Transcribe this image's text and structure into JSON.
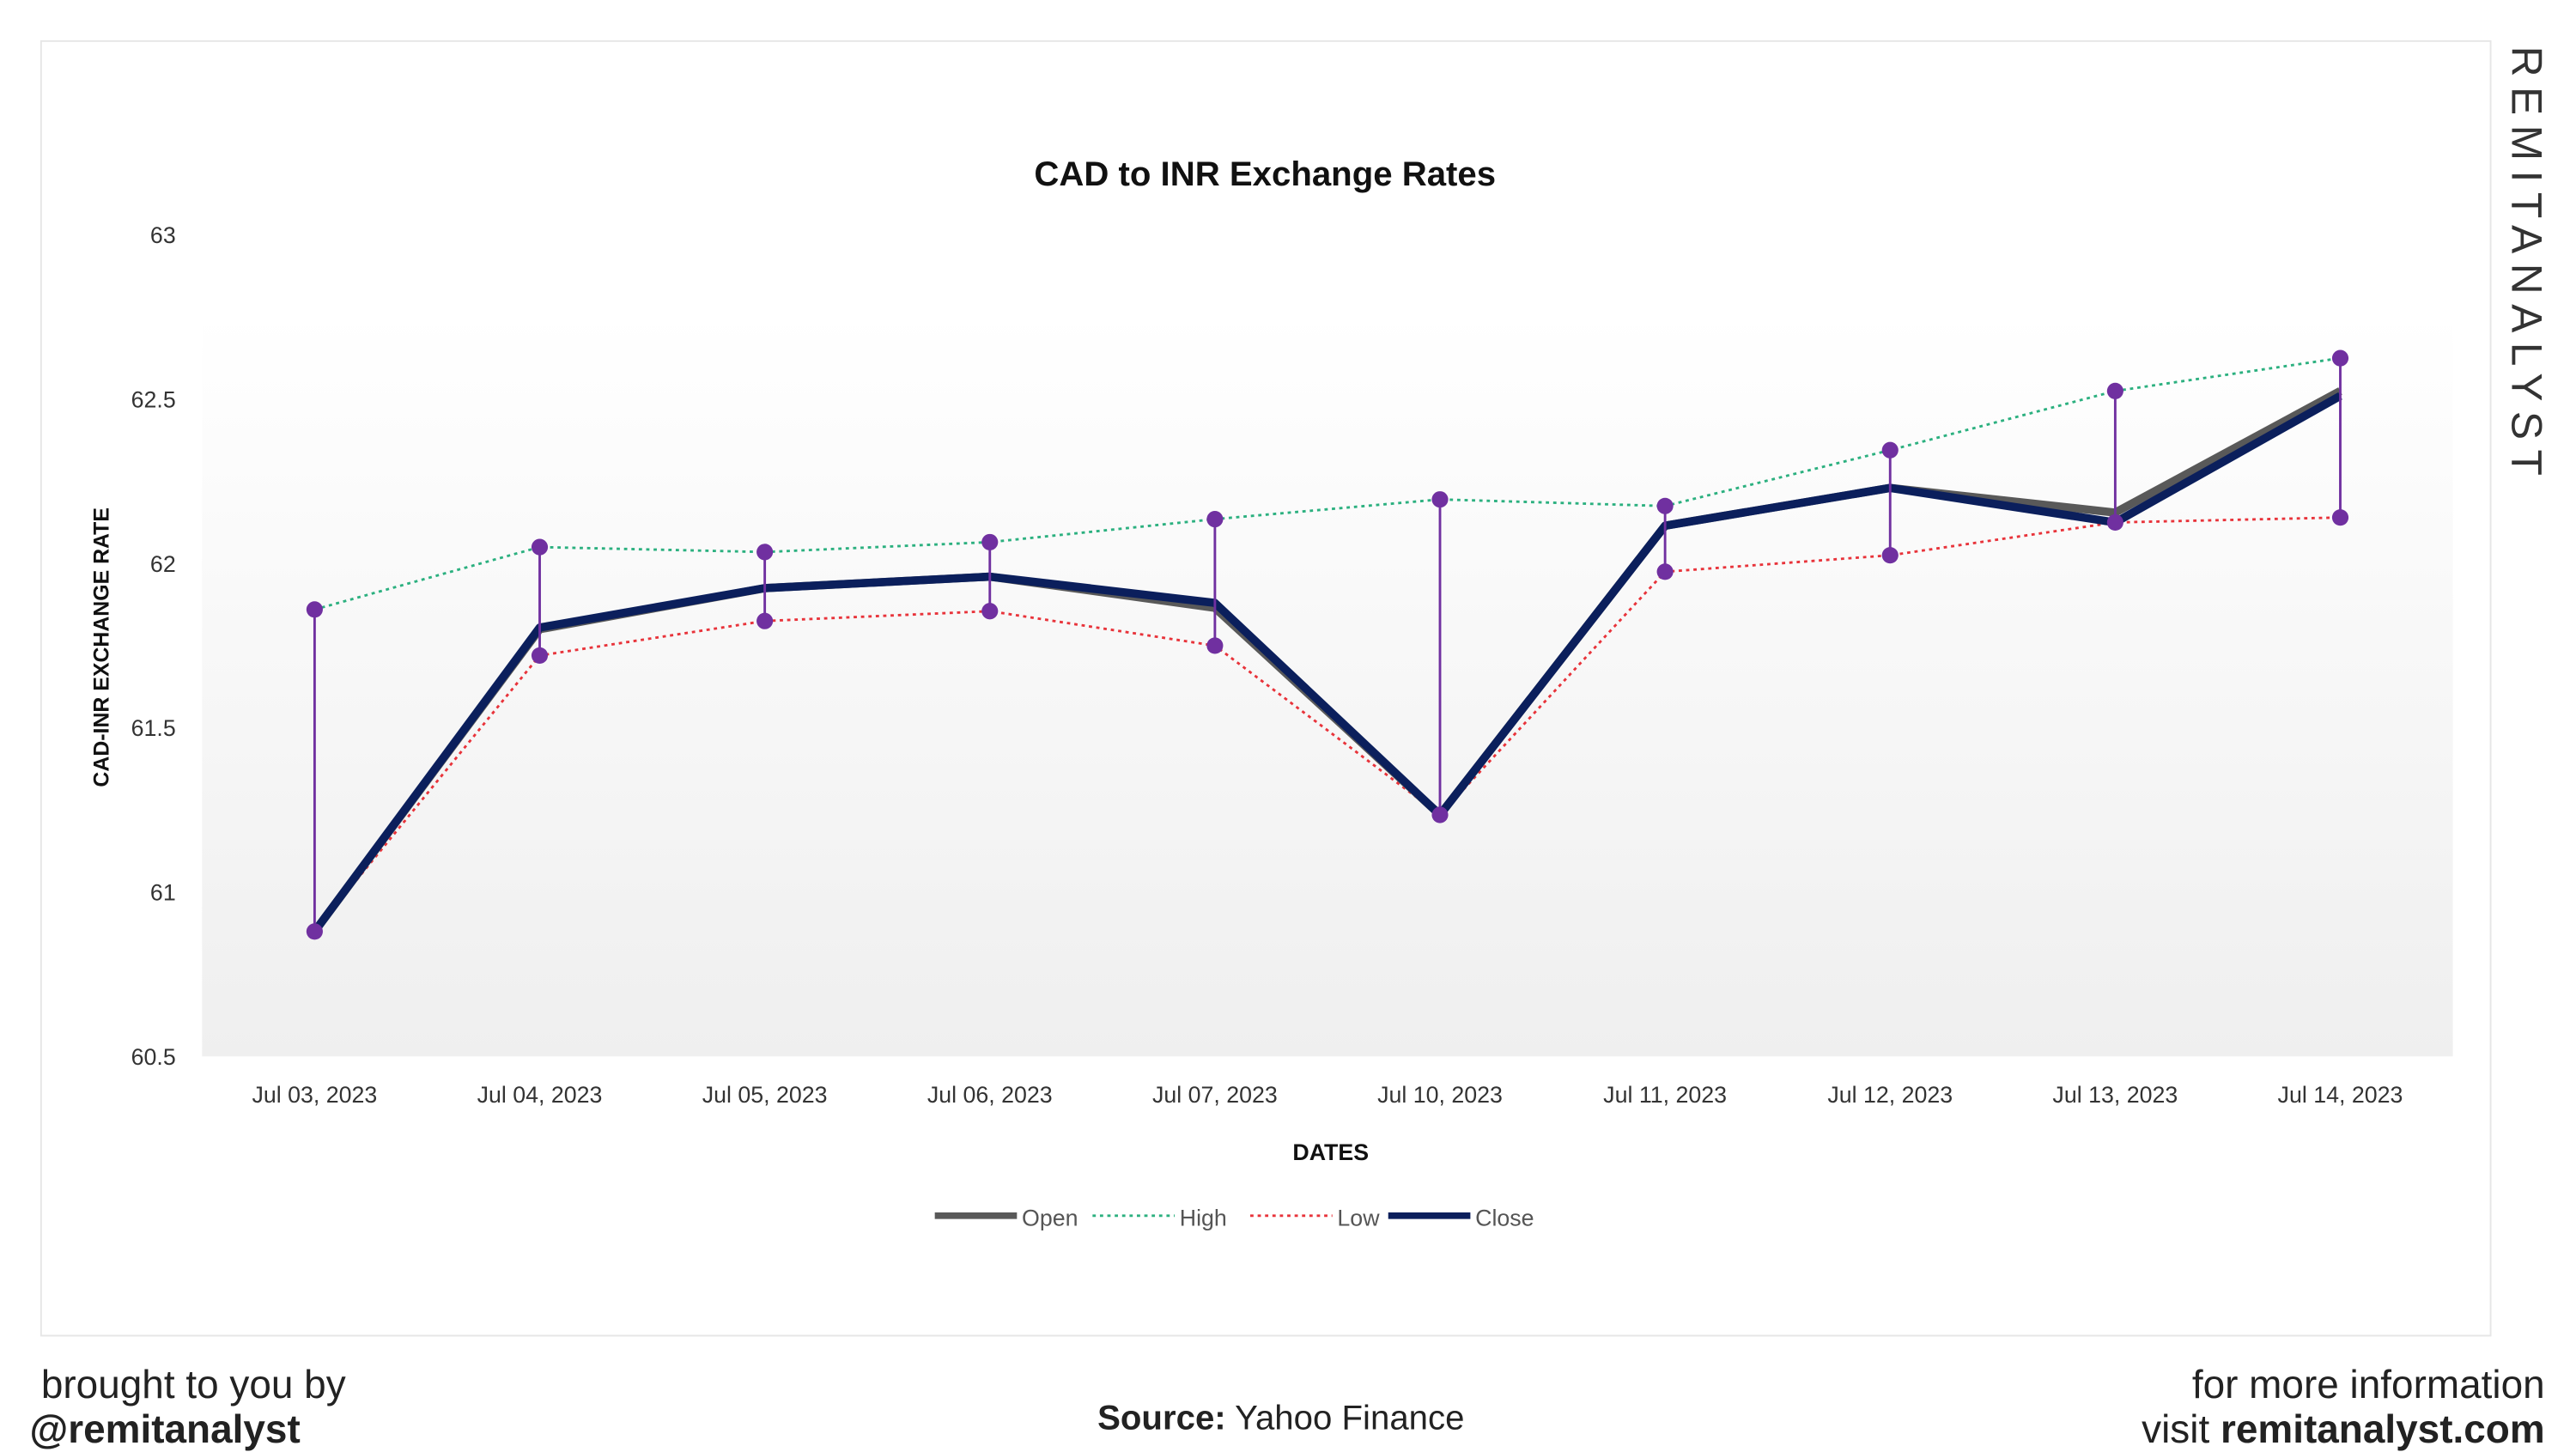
{
  "chart_data": {
    "type": "line",
    "title": "CAD to INR Exchange Rates",
    "xlabel": "DATES",
    "ylabel": "CAD-INR EXCHANGE RATE",
    "ylim": [
      60.5,
      63
    ],
    "yticks": [
      "60.5",
      "61",
      "61.5",
      "62",
      "62.5",
      "63"
    ],
    "grid": false,
    "legend_position": "bottom",
    "categories": [
      "Jul 03, 2023",
      "Jul 04, 2023",
      "Jul 05, 2023",
      "Jul 06, 2023",
      "Jul 07, 2023",
      "Jul 10, 2023",
      "Jul 11, 2023",
      "Jul 12, 2023",
      "Jul 13, 2023",
      "Jul 14, 2023"
    ],
    "series": [
      {
        "name": "Open",
        "color": "#595959",
        "style": "solid",
        "values": [
          60.88,
          61.8,
          61.925,
          61.96,
          61.865,
          61.235,
          62.115,
          62.23,
          62.155,
          62.525
        ]
      },
      {
        "name": "High",
        "color": "#2bb07f",
        "style": "dotted",
        "values": [
          61.86,
          62.05,
          62.035,
          62.065,
          62.135,
          62.195,
          62.175,
          62.345,
          62.525,
          62.625
        ]
      },
      {
        "name": "Low",
        "color": "#e8333a",
        "style": "dotted",
        "values": [
          60.88,
          61.72,
          61.825,
          61.855,
          61.75,
          61.235,
          61.975,
          62.025,
          62.125,
          62.14
        ]
      },
      {
        "name": "Close",
        "color": "#0b1f5c",
        "style": "solid",
        "values": [
          60.88,
          61.805,
          61.925,
          61.96,
          61.88,
          61.235,
          62.115,
          62.23,
          62.125,
          62.51
        ]
      }
    ],
    "hi_lo_marker_color": "#7030a0"
  },
  "footer": {
    "left_line1": "brought to you by",
    "left_line2": "@remitanalyst",
    "source_label": "Source:",
    "source_value": "Yahoo Finance",
    "right_line1": "for more information",
    "right_line2_prefix": "visit ",
    "right_line2_site": "remitanalyst.com"
  },
  "brand": "REMITANALYST"
}
